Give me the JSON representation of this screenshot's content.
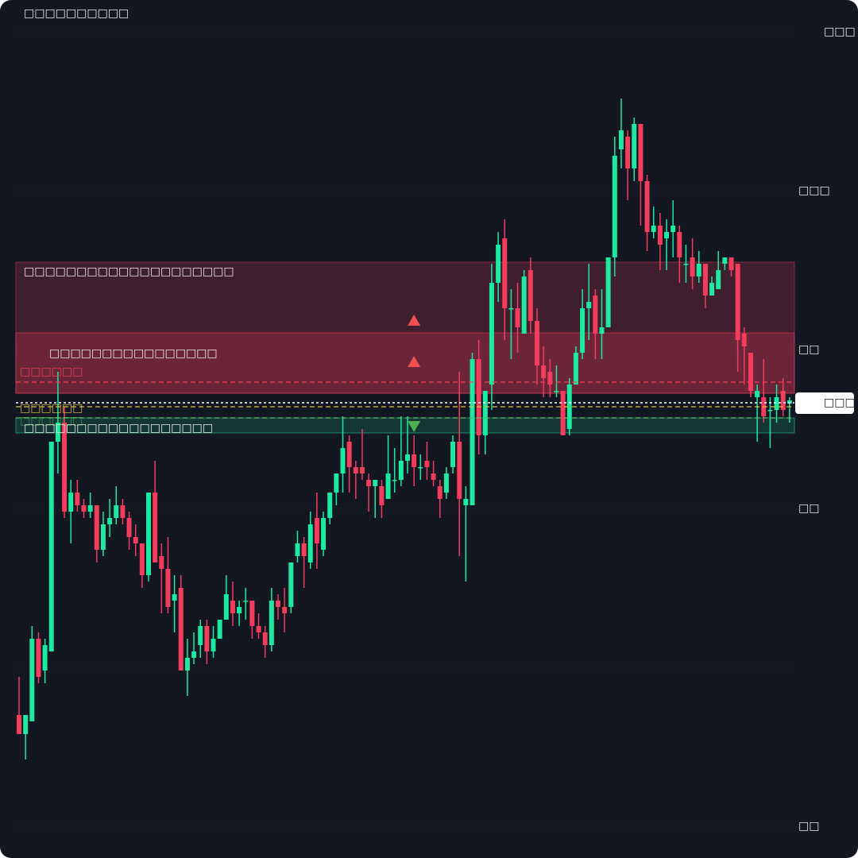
{
  "chart_data": {
    "type": "candlestick",
    "title": "□□□□□□□□□□",
    "ylim": [
      0,
      1000
    ],
    "yticks": [
      {
        "value": 1000,
        "label": "□□□"
      },
      {
        "value": 800,
        "label": "□□□"
      },
      {
        "value": 600,
        "label": "□□"
      },
      {
        "value": 400,
        "label": "□□"
      },
      {
        "value": 0,
        "label": "□□"
      }
    ],
    "gridlines": [
      0,
      200,
      400,
      600,
      800,
      1000
    ],
    "grid": true,
    "up_color": "#1de9a0",
    "down_color": "#f23d5c",
    "open": [
      140,
      116,
      132,
      236,
      196,
      220,
      484,
      508,
      396,
      420,
      404,
      396,
      404,
      348,
      380,
      388,
      404,
      388,
      364,
      356,
      316,
      420,
      340,
      324,
      284,
      300,
      196,
      212,
      228,
      252,
      220,
      236,
      260,
      284,
      268,
      284,
      284,
      252,
      244,
      228,
      284,
      276,
      276,
      340,
      356,
      332,
      388,
      348,
      388,
      420,
      444,
      484,
      452,
      452,
      436,
      428,
      428,
      412,
      436,
      436,
      460,
      468,
      452,
      460,
      444,
      428,
      420,
      452,
      484,
      404,
      404,
      588,
      492,
      556,
      684,
      740,
      652,
      652,
      620,
      700,
      636,
      580,
      572,
      548,
      548,
      500,
      556,
      596,
      652,
      668,
      620,
      628,
      716,
      852,
      868,
      828,
      884,
      812,
      748,
      756,
      740,
      748,
      748,
      708,
      716,
      692,
      708,
      668,
      676,
      708,
      716,
      708,
      620,
      596,
      540,
      540,
      524,
      524,
      548,
      532
    ],
    "high": [
      188,
      140,
      252,
      244,
      236,
      484,
      572,
      528,
      436,
      436,
      412,
      420,
      404,
      396,
      412,
      428,
      412,
      396,
      380,
      356,
      420,
      460,
      356,
      364,
      316,
      316,
      236,
      244,
      260,
      260,
      252,
      260,
      316,
      308,
      284,
      300,
      284,
      268,
      252,
      300,
      292,
      300,
      332,
      372,
      364,
      396,
      420,
      396,
      420,
      444,
      516,
      492,
      460,
      500,
      444,
      436,
      436,
      492,
      476,
      516,
      516,
      492,
      468,
      484,
      460,
      436,
      452,
      492,
      572,
      428,
      596,
      612,
      548,
      708,
      748,
      764,
      676,
      684,
      700,
      716,
      652,
      604,
      588,
      580,
      548,
      564,
      604,
      676,
      708,
      676,
      676,
      716,
      868,
      916,
      876,
      892,
      884,
      820,
      780,
      772,
      764,
      788,
      756,
      732,
      740,
      724,
      708,
      692,
      724,
      716,
      716,
      708,
      628,
      596,
      556,
      588,
      540,
      556,
      564,
      540
    ],
    "low": [
      116,
      84,
      132,
      180,
      180,
      220,
      444,
      388,
      356,
      396,
      388,
      388,
      332,
      340,
      364,
      380,
      380,
      348,
      340,
      300,
      308,
      332,
      268,
      268,
      244,
      196,
      164,
      204,
      212,
      204,
      212,
      236,
      260,
      252,
      252,
      260,
      236,
      236,
      212,
      220,
      260,
      244,
      268,
      332,
      300,
      324,
      324,
      340,
      380,
      404,
      420,
      420,
      412,
      436,
      396,
      388,
      388,
      412,
      420,
      428,
      444,
      428,
      436,
      436,
      428,
      388,
      412,
      444,
      340,
      308,
      404,
      468,
      468,
      524,
      660,
      612,
      588,
      596,
      620,
      620,
      556,
      540,
      540,
      540,
      492,
      492,
      556,
      588,
      612,
      588,
      588,
      628,
      692,
      828,
      788,
      812,
      756,
      724,
      740,
      700,
      700,
      716,
      684,
      684,
      676,
      684,
      652,
      668,
      676,
      700,
      692,
      572,
      556,
      540,
      484,
      508,
      476,
      508,
      516,
      508
    ],
    "close": [
      116,
      140,
      236,
      188,
      228,
      484,
      508,
      396,
      420,
      404,
      396,
      404,
      348,
      380,
      388,
      404,
      388,
      364,
      356,
      316,
      420,
      332,
      324,
      276,
      292,
      196,
      212,
      220,
      252,
      220,
      236,
      260,
      292,
      268,
      276,
      284,
      252,
      244,
      228,
      284,
      276,
      268,
      332,
      356,
      340,
      380,
      356,
      388,
      420,
      444,
      476,
      452,
      444,
      444,
      428,
      436,
      404,
      444,
      436,
      460,
      468,
      452,
      452,
      452,
      436,
      412,
      444,
      484,
      412,
      412,
      588,
      492,
      548,
      684,
      732,
      652,
      652,
      628,
      692,
      636,
      580,
      564,
      556,
      548,
      492,
      556,
      596,
      652,
      660,
      620,
      628,
      716,
      844,
      876,
      828,
      884,
      812,
      748,
      756,
      732,
      748,
      756,
      716,
      708,
      692,
      708,
      668,
      684,
      700,
      716,
      700,
      612,
      604,
      548,
      548,
      516,
      524,
      540,
      524,
      536
    ],
    "zones": [
      {
        "label": "□□□□□□□□□□□□□□□□□□□□",
        "top": 710,
        "bottom": 545,
        "color": "#f23d5c",
        "opacity": 0.2
      },
      {
        "label": "□□□□□□□□□□□□□□□□",
        "top": 621,
        "bottom": 545,
        "color": "#f23d5c",
        "opacity": 0.25
      },
      {
        "label": "□□□□□□□□□□□□□□□□□□",
        "top": 514,
        "bottom": 495,
        "color": "#1de9a0",
        "opacity": 0.15
      }
    ],
    "lines": [
      {
        "value": 559,
        "color": "#f23d5c",
        "label": "□□□□□□"
      },
      {
        "value": 528,
        "color": "#e0c040",
        "label": "□□□□□□"
      },
      {
        "value": 514,
        "color": "#5cbf60",
        "label": "□□□□□□"
      }
    ],
    "current_price": {
      "value": 533,
      "label": "□□□□"
    },
    "markers": [
      {
        "index": 61,
        "value": 637,
        "shape": "up",
        "color": "#f25050"
      },
      {
        "index": 61,
        "value": 585,
        "shape": "up",
        "color": "#f25050"
      },
      {
        "index": 61,
        "value": 503,
        "shape": "down",
        "color": "#4caf50"
      }
    ]
  }
}
